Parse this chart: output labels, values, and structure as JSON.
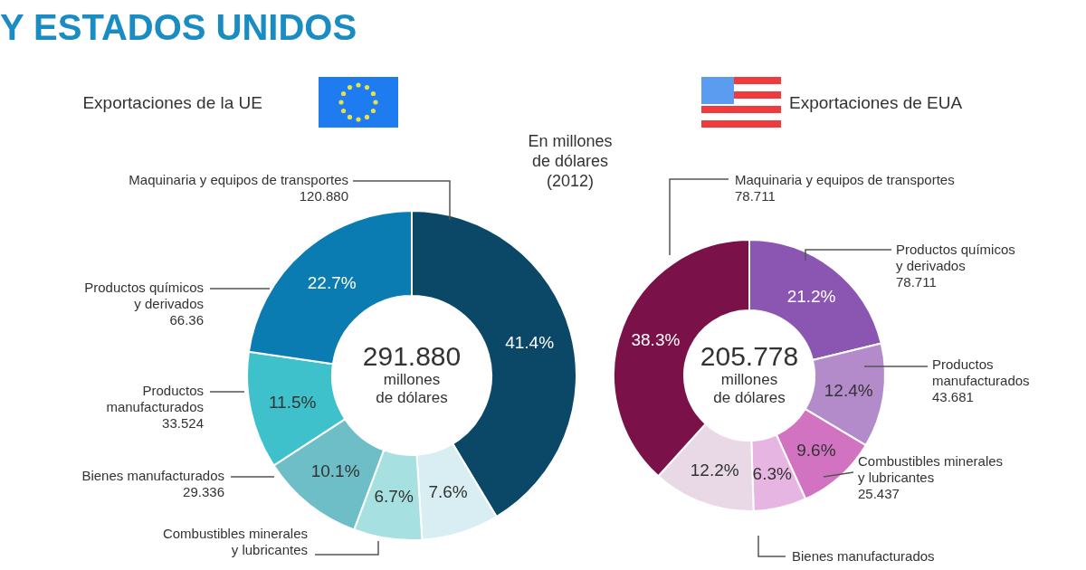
{
  "chart_data": [
    {
      "type": "donut",
      "title": "Y ESTADOS UNIDOS",
      "subtitle": "Exportaciones de la UE",
      "categories": [
        "Maquinaria y equipos de transportes\n120.880",
        null,
        "Combustibles minerales\ny lubricantes",
        "Bienes manufacturados\n29.336",
        "Productos\nmanufacturados\n33.524",
        "Productos químicos\ny derivados\n66.36"
      ],
      "values": [
        41.4,
        7.6,
        6.7,
        10.1,
        11.5,
        22.7
      ],
      "colors": [
        "#0b4868",
        "#d8eef3",
        "#a6e0e0",
        "#6dbec6",
        "#3fc1cc",
        "#0a7cb2"
      ],
      "value_labels": [
        "41.4%",
        "7.6%",
        "6.7%",
        "10.1%",
        "11.5%",
        "22.7%"
      ],
      "annotations": [
        "291.880\nmillones\nde dólares",
        "En millones\nde dólares\n(2012)"
      ]
    },
    {
      "type": "donut",
      "subtitle": "Exportaciones de EUA",
      "categories": [
        "Productos químicos\ny derivados\n78.711",
        "Productos\nmanufacturados\n43.681",
        "Combustibles minerales\ny lubricantes\n25.437",
        "Bienes manufacturados",
        null,
        "Maquinaria y equipos de transportes\n78.711"
      ],
      "values": [
        21.2,
        12.4,
        9.6,
        6.3,
        12.2,
        38.3
      ],
      "colors": [
        "#8a56b2",
        "#b48bca",
        "#d273c2",
        "#e7b5e2",
        "#e9d9e6",
        "#7a1149"
      ],
      "value_labels": [
        "21.2%",
        "12.4%",
        "9.6%",
        "6.3%",
        "12.2%",
        "38.3%"
      ],
      "annotations": [
        "205.778\nmillones\nde dólares"
      ]
    }
  ]
}
